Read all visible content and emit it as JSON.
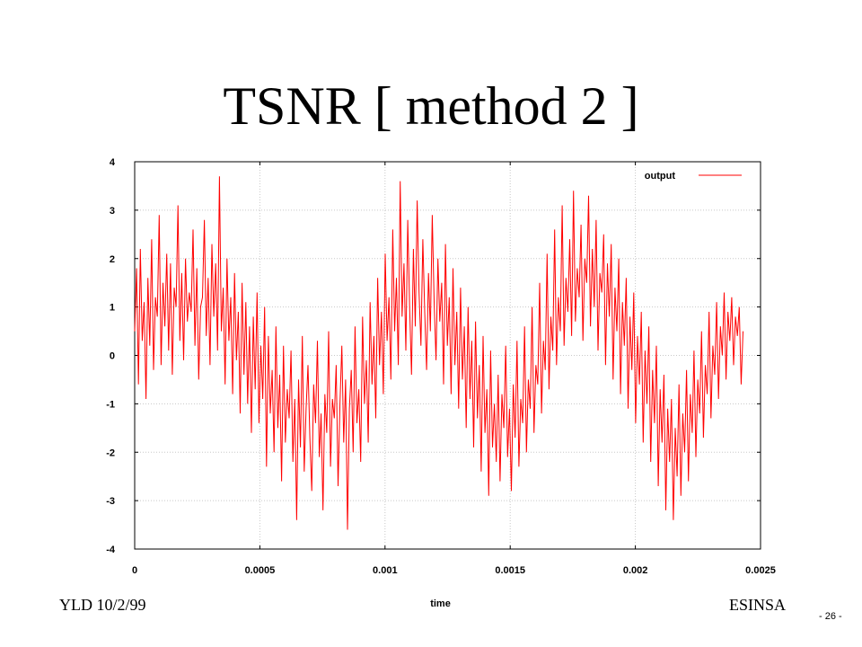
{
  "slide": {
    "title": "TSNR [ method 2 ]",
    "footer_left": "YLD 10/2/99",
    "footer_right": "ESINSA",
    "page_number": "- 26 -"
  },
  "chart_data": {
    "type": "line",
    "title": "",
    "xlabel": "time",
    "ylabel": "",
    "xlim": [
      0,
      0.0025
    ],
    "ylim": [
      -4,
      4
    ],
    "x_ticks": [
      "0",
      "0.0005",
      "0.001",
      "0.0015",
      "0.002",
      "0.0025"
    ],
    "y_ticks": [
      "4",
      "3",
      "2",
      "1",
      "0",
      "-1",
      "-2",
      "-3",
      "-4"
    ],
    "grid": true,
    "legend_position": "top-right",
    "series": [
      {
        "name": "output",
        "color": "#ff0000",
        "x_start": 0,
        "x_end": 0.00243,
        "y": [
          0.5,
          1.8,
          -0.6,
          2.2,
          0.3,
          1.1,
          -0.9,
          1.6,
          0.2,
          2.4,
          -0.3,
          1.2,
          0.8,
          2.9,
          -0.2,
          1.5,
          0.6,
          2.1,
          0.1,
          1.9,
          -0.4,
          1.4,
          1.0,
          3.1,
          0.3,
          1.7,
          -0.1,
          2.0,
          0.7,
          1.3,
          0.9,
          2.6,
          0.2,
          1.8,
          -0.5,
          1.0,
          1.2,
          2.8,
          0.4,
          1.6,
          -0.2,
          2.3,
          0.8,
          1.9,
          0.1,
          3.7,
          0.5,
          1.4,
          -0.6,
          2.0,
          0.3,
          1.2,
          -0.8,
          1.7,
          -0.1,
          0.9,
          -1.2,
          1.5,
          -0.4,
          1.1,
          -1.0,
          0.6,
          -1.6,
          0.8,
          -0.7,
          1.3,
          -1.4,
          0.2,
          -0.9,
          1.0,
          -2.3,
          0.4,
          -1.2,
          -0.3,
          -2.0,
          0.6,
          -1.5,
          -0.4,
          -2.6,
          0.2,
          -1.8,
          -0.7,
          -1.3,
          0.1,
          -2.2,
          -0.9,
          -3.4,
          -0.5,
          -1.9,
          0.4,
          -2.4,
          -1.1,
          -0.2,
          -1.7,
          -2.8,
          -0.6,
          -1.4,
          0.3,
          -2.1,
          -1.2,
          -3.2,
          -0.8,
          -1.6,
          0.5,
          -2.3,
          -0.9,
          -1.3,
          -0.2,
          -2.7,
          -1.0,
          0.2,
          -1.8,
          -0.5,
          -3.6,
          -1.1,
          -0.3,
          -2.0,
          0.6,
          -1.4,
          -0.7,
          -2.2,
          0.8,
          -1.0,
          -0.1,
          -1.8,
          1.1,
          -0.6,
          0.4,
          -1.3,
          1.6,
          -0.2,
          0.9,
          -0.8,
          2.1,
          0.3,
          1.2,
          -0.5,
          2.6,
          0.5,
          1.6,
          -0.2,
          3.6,
          0.8,
          1.9,
          0.1,
          2.8,
          1.0,
          -0.4,
          2.2,
          0.6,
          3.2,
          1.3,
          0.2,
          2.4,
          0.9,
          -0.3,
          1.7,
          0.5,
          2.9,
          1.1,
          -0.1,
          2.0,
          0.7,
          1.5,
          -0.6,
          2.3,
          0.2,
          1.2,
          -0.8,
          1.8,
          -0.2,
          0.9,
          -1.1,
          1.4,
          -0.5,
          0.6,
          -1.5,
          1.0,
          -0.9,
          0.3,
          -1.9,
          0.7,
          -1.3,
          -0.2,
          -2.4,
          0.4,
          -1.6,
          -0.7,
          -2.9,
          0.1,
          -1.9,
          -1.0,
          -2.2,
          -0.4,
          -2.6,
          -0.8,
          -1.5,
          0.2,
          -2.1,
          -1.1,
          -2.8,
          -0.6,
          -1.7,
          0.3,
          -2.3,
          -0.9,
          -1.4,
          0.6,
          -2.0,
          -0.5,
          -1.1,
          1.0,
          -1.6,
          -0.2,
          -0.6,
          1.5,
          -1.2,
          0.3,
          -0.3,
          2.1,
          -0.7,
          0.8,
          0.1,
          2.6,
          -0.2,
          1.2,
          0.5,
          3.1,
          0.2,
          1.6,
          0.9,
          2.4,
          0.4,
          3.4,
          0.7,
          1.8,
          1.2,
          2.7,
          0.3,
          2.0,
          1.5,
          3.3,
          0.6,
          2.2,
          1.0,
          2.8,
          0.1,
          1.7,
          1.3,
          2.5,
          -0.2,
          1.9,
          0.8,
          2.3,
          -0.5,
          1.4,
          0.5,
          2.0,
          -0.8,
          1.1,
          0.2,
          1.6,
          -1.1,
          0.8,
          -0.3,
          1.3,
          -1.4,
          0.4,
          -0.6,
          0.9,
          -1.8,
          0.1,
          -1.0,
          0.6,
          -2.2,
          -0.3,
          -1.4,
          0.2,
          -2.7,
          -0.7,
          -1.8,
          -0.4,
          -3.2,
          -1.1,
          -2.2,
          -0.9,
          -3.4,
          -1.5,
          -2.5,
          -0.6,
          -2.9,
          -1.2,
          -2.0,
          -0.3,
          -2.6,
          -0.8,
          -1.6,
          0.1,
          -2.1,
          -0.5,
          -1.2,
          0.5,
          -1.7,
          -0.2,
          -0.8,
          0.9,
          -1.3,
          0.2,
          -0.4,
          1.1,
          -0.9,
          0.6,
          0.0,
          1.3,
          -0.5,
          0.9,
          0.3,
          1.2,
          -0.2,
          0.8,
          0.4,
          1.0,
          -0.6,
          0.5
        ]
      }
    ]
  }
}
